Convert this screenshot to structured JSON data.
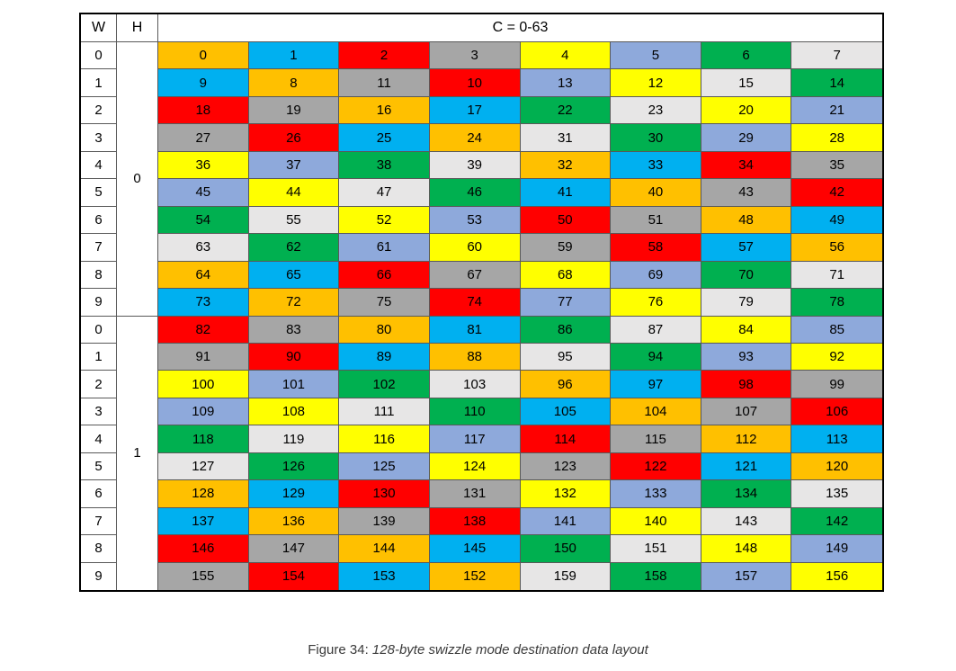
{
  "figure": {
    "header": {
      "w_label": "W",
      "h_label": "H",
      "c_label": "C = 0-63"
    },
    "color_legend": {
      "mod0": "#FFC000",
      "mod1": "#00B0F0",
      "mod2": "#FF0000",
      "mod3": "#A6A6A6",
      "mod4": "#FFFF00",
      "mod5": "#8EA9DB",
      "mod6": "#00B050",
      "mod7": "#E7E6E6"
    },
    "groups": [
      {
        "h": "0",
        "rows": [
          {
            "w": "0",
            "values": [
              0,
              1,
              2,
              3,
              4,
              5,
              6,
              7
            ]
          },
          {
            "w": "1",
            "values": [
              9,
              8,
              11,
              10,
              13,
              12,
              15,
              14
            ]
          },
          {
            "w": "2",
            "values": [
              18,
              19,
              16,
              17,
              22,
              23,
              20,
              21
            ]
          },
          {
            "w": "3",
            "values": [
              27,
              26,
              25,
              24,
              31,
              30,
              29,
              28
            ]
          },
          {
            "w": "4",
            "values": [
              36,
              37,
              38,
              39,
              32,
              33,
              34,
              35
            ]
          },
          {
            "w": "5",
            "values": [
              45,
              44,
              47,
              46,
              41,
              40,
              43,
              42
            ]
          },
          {
            "w": "6",
            "values": [
              54,
              55,
              52,
              53,
              50,
              51,
              48,
              49
            ]
          },
          {
            "w": "7",
            "values": [
              63,
              62,
              61,
              60,
              59,
              58,
              57,
              56
            ]
          },
          {
            "w": "8",
            "values": [
              64,
              65,
              66,
              67,
              68,
              69,
              70,
              71
            ]
          },
          {
            "w": "9",
            "values": [
              73,
              72,
              75,
              74,
              77,
              76,
              79,
              78
            ]
          }
        ]
      },
      {
        "h": "1",
        "rows": [
          {
            "w": "0",
            "values": [
              82,
              83,
              80,
              81,
              86,
              87,
              84,
              85
            ]
          },
          {
            "w": "1",
            "values": [
              91,
              90,
              89,
              88,
              95,
              94,
              93,
              92
            ]
          },
          {
            "w": "2",
            "values": [
              100,
              101,
              102,
              103,
              96,
              97,
              98,
              99
            ]
          },
          {
            "w": "3",
            "values": [
              109,
              108,
              111,
              110,
              105,
              104,
              107,
              106
            ]
          },
          {
            "w": "4",
            "values": [
              118,
              119,
              116,
              117,
              114,
              115,
              112,
              113
            ]
          },
          {
            "w": "5",
            "values": [
              127,
              126,
              125,
              124,
              123,
              122,
              121,
              120
            ]
          },
          {
            "w": "6",
            "values": [
              128,
              129,
              130,
              131,
              132,
              133,
              134,
              135
            ]
          },
          {
            "w": "7",
            "values": [
              137,
              136,
              139,
              138,
              141,
              140,
              143,
              142
            ]
          },
          {
            "w": "8",
            "values": [
              146,
              147,
              144,
              145,
              150,
              151,
              148,
              149
            ]
          },
          {
            "w": "9",
            "values": [
              155,
              154,
              153,
              152,
              159,
              158,
              157,
              156
            ]
          }
        ]
      }
    ]
  },
  "caption": {
    "prefix": "Figure 34: ",
    "title": "128-byte swizzle mode destination data layout"
  }
}
